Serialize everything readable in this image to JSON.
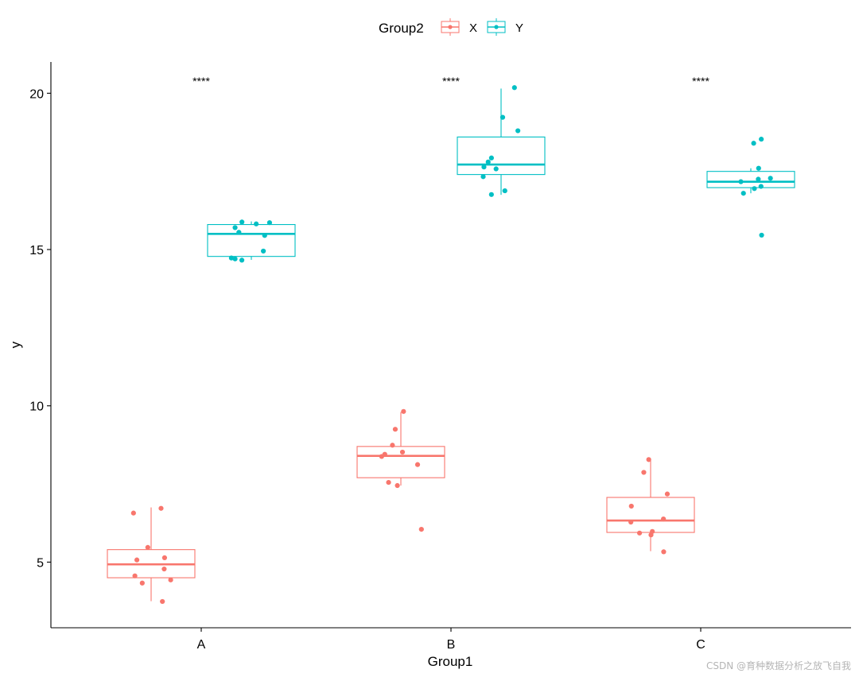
{
  "chart_data": {
    "type": "boxplot",
    "title": "",
    "xlabel": "Group1",
    "ylabel": "y",
    "categories": [
      "A",
      "B",
      "C"
    ],
    "ylim": [
      2.9,
      21.0
    ],
    "yticks": [
      5,
      10,
      15,
      20
    ],
    "grid": false,
    "legend": {
      "title": "Group2",
      "position": "top",
      "entries": [
        "X",
        "Y"
      ]
    },
    "colors": {
      "X": "#F8766D",
      "Y": "#00BFC4",
      "axis": "#000000"
    },
    "significance": [
      {
        "category": "A",
        "label": "****"
      },
      {
        "category": "B",
        "label": "****"
      },
      {
        "category": "C",
        "label": "****"
      }
    ],
    "series": [
      {
        "name": "X",
        "boxes": [
          {
            "category": "A",
            "whisker_low": 3.75,
            "q1": 4.5,
            "median": 4.93,
            "q3": 5.4,
            "whisker_high": 6.75
          },
          {
            "category": "B",
            "whisker_low": 7.45,
            "q1": 7.7,
            "median": 8.4,
            "q3": 8.7,
            "whisker_high": 9.8
          },
          {
            "category": "C",
            "whisker_low": 5.35,
            "q1": 5.95,
            "median": 6.33,
            "q3": 7.07,
            "whisker_high": 8.3
          }
        ],
        "points": [
          {
            "category": "A",
            "values": [
              6.72,
              6.57,
              5.47,
              5.14,
              5.07,
              4.78,
              4.56,
              4.43,
              4.33,
              3.74
            ]
          },
          {
            "category": "B",
            "values": [
              9.82,
              9.25,
              8.74,
              8.52,
              8.45,
              8.38,
              8.12,
              7.55,
              7.45,
              6.05
            ]
          },
          {
            "category": "C",
            "values": [
              8.28,
              7.87,
              7.18,
              6.79,
              6.38,
              6.28,
              5.98,
              5.93,
              5.87,
              5.33
            ]
          }
        ]
      },
      {
        "name": "Y",
        "boxes": [
          {
            "category": "A",
            "whisker_low": 14.67,
            "q1": 14.78,
            "median": 15.5,
            "q3": 15.8,
            "whisker_high": 15.9
          },
          {
            "category": "B",
            "whisker_low": 16.75,
            "q1": 17.4,
            "median": 17.72,
            "q3": 18.6,
            "whisker_high": 20.15
          },
          {
            "category": "C",
            "whisker_low": 16.8,
            "q1": 16.98,
            "median": 17.17,
            "q3": 17.5,
            "whisker_high": 17.6
          }
        ],
        "points": [
          {
            "category": "A",
            "values": [
              15.88,
              15.86,
              15.82,
              15.7,
              15.55,
              15.45,
              14.95,
              14.73,
              14.7,
              14.66
            ]
          },
          {
            "category": "B",
            "values": [
              20.18,
              19.23,
              18.8,
              17.93,
              17.8,
              17.64,
              17.58,
              17.33,
              16.88,
              16.76
            ]
          },
          {
            "category": "C",
            "values": [
              18.53,
              18.4,
              17.6,
              17.28,
              17.25,
              17.17,
              17.02,
              16.95,
              16.8,
              15.46
            ]
          }
        ]
      }
    ]
  },
  "watermark": "CSDN @育种数据分析之放飞自我"
}
